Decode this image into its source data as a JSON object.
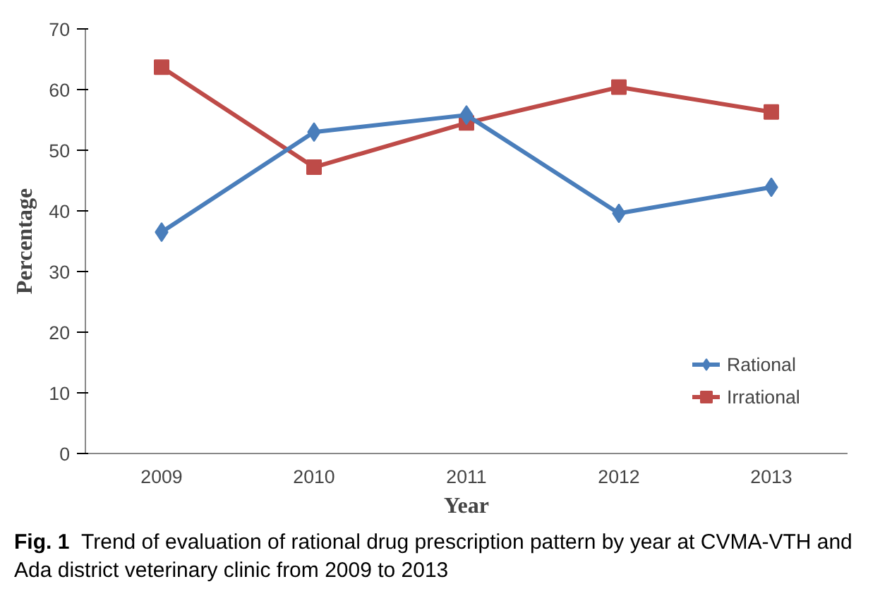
{
  "chart_data": {
    "type": "line",
    "xlabel": "Year",
    "ylabel": "Percentage",
    "categories": [
      "2009",
      "2010",
      "2011",
      "2012",
      "2013"
    ],
    "series": [
      {
        "name": "Rational",
        "color": "#4a7ebb",
        "marker": "diamond",
        "values": [
          36.5,
          53.0,
          55.8,
          39.6,
          43.9
        ]
      },
      {
        "name": "Irrational",
        "color": "#be4b48",
        "marker": "square",
        "values": [
          63.7,
          47.2,
          54.5,
          60.4,
          56.3
        ]
      }
    ],
    "ylim": [
      0,
      70
    ],
    "yticks": [
      0,
      10,
      20,
      30,
      40,
      50,
      60,
      70
    ],
    "grid": false,
    "legend": "right",
    "line_style": "solid",
    "annotations": [
      "Fig. 1  Trend of evaluation of rational drug prescription pattern by year at CVMA-VTH and Ada district veterinary clinic from 2009 to 2013"
    ]
  }
}
